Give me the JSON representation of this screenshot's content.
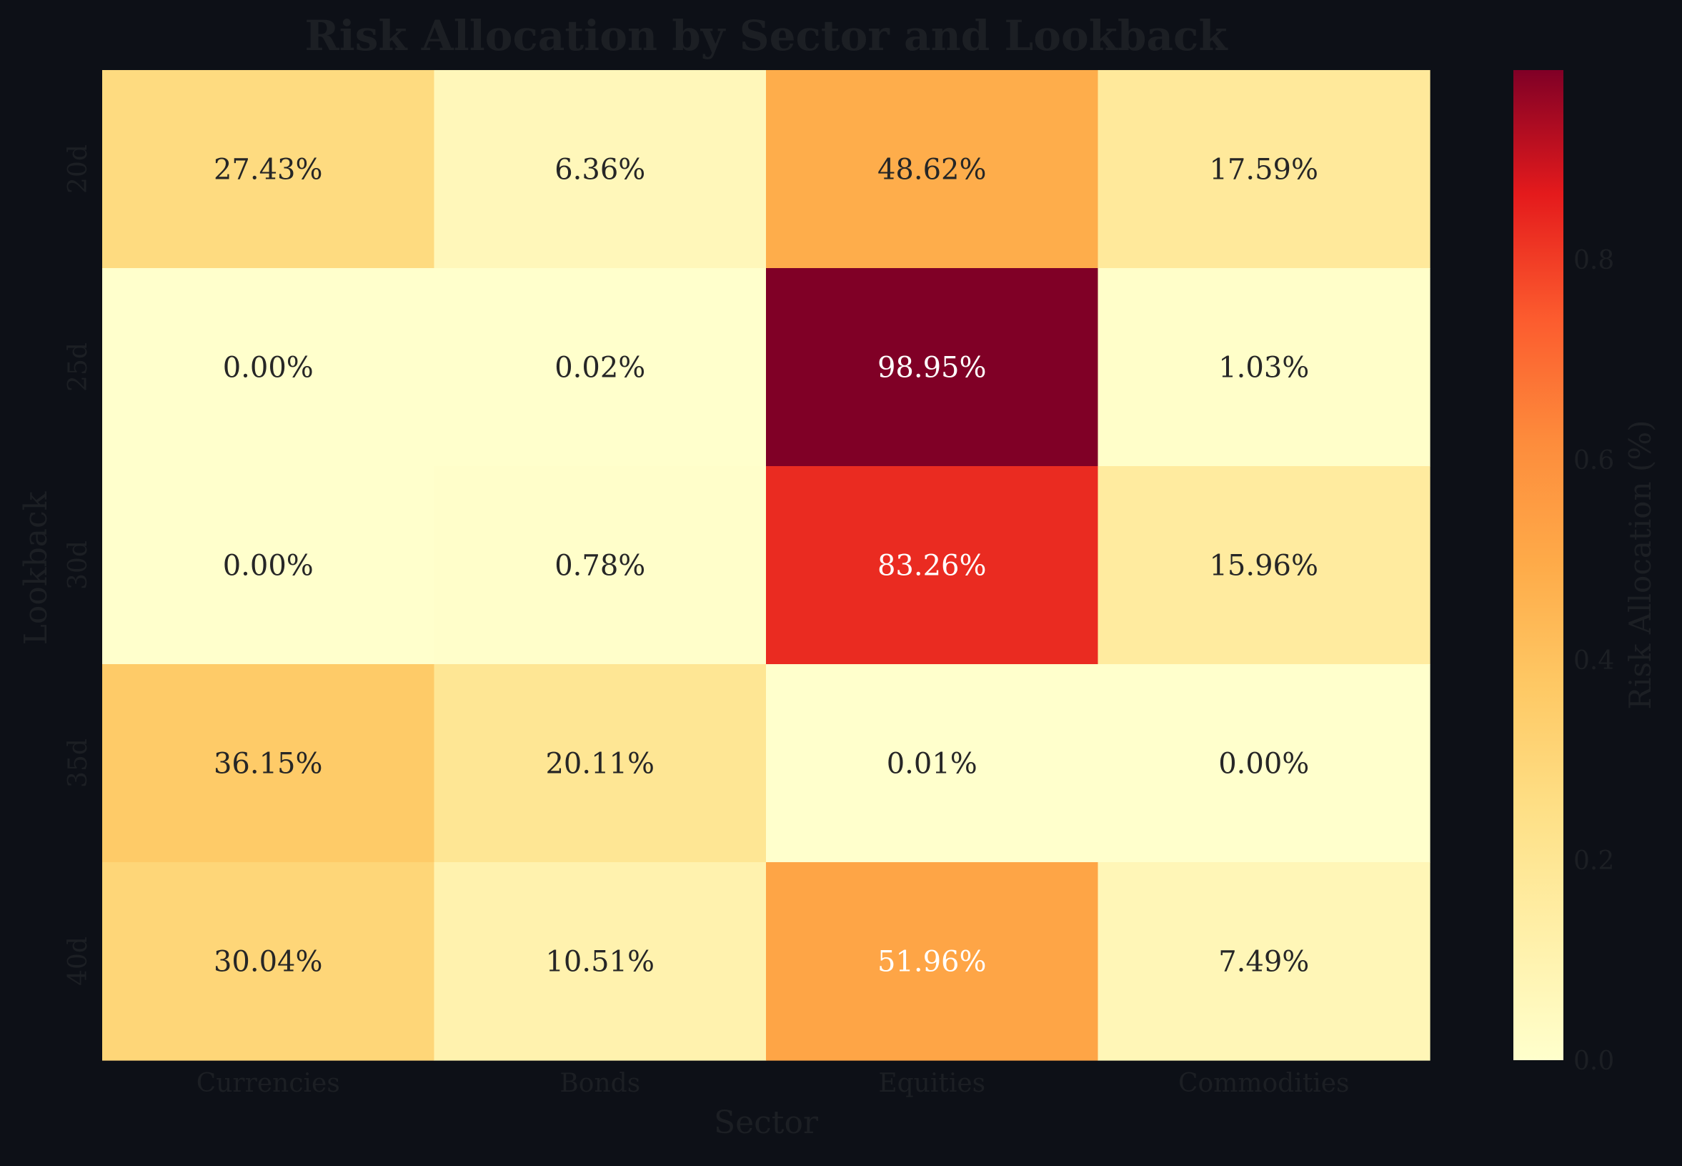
{
  "chart_data": {
    "type": "heatmap",
    "title": "Risk Allocation by Sector and Lookback",
    "xlabel": "Sector",
    "ylabel": "Lookback",
    "x_categories": [
      "Currencies",
      "Bonds",
      "Equities",
      "Commodities"
    ],
    "y_categories": [
      "20d",
      "25d",
      "30d",
      "35d",
      "40d"
    ],
    "values": [
      [
        0.2743,
        0.0636,
        0.4862,
        0.1759
      ],
      [
        0.0,
        0.0002,
        0.9895,
        0.0103
      ],
      [
        0.0,
        0.0078,
        0.8326,
        0.1596
      ],
      [
        0.3615,
        0.2011,
        0.0001,
        0.0
      ],
      [
        0.3004,
        0.1051,
        0.5196,
        0.0749
      ]
    ],
    "cell_labels": [
      [
        "27.43%",
        "6.36%",
        "48.62%",
        "17.59%"
      ],
      [
        "0.00%",
        "0.02%",
        "98.95%",
        "1.03%"
      ],
      [
        "0.00%",
        "0.78%",
        "83.26%",
        "15.96%"
      ],
      [
        "36.15%",
        "20.11%",
        "0.01%",
        "0.00%"
      ],
      [
        "30.04%",
        "10.51%",
        "51.96%",
        "7.49%"
      ]
    ],
    "colorbar": {
      "label": "Risk Allocation (%)",
      "range": [
        0,
        0.9895
      ],
      "ticks": [
        0.0,
        0.2,
        0.4,
        0.6,
        0.8
      ],
      "tick_labels": [
        "0.0",
        "0.2",
        "0.4",
        "0.6",
        "0.8"
      ],
      "colormap": "YlOrRd"
    },
    "colors": {
      "background": "#0d1017",
      "axis_text": "#1c1f24",
      "cell_text_dark": "#262626",
      "cell_text_light": "#ffffff"
    }
  }
}
